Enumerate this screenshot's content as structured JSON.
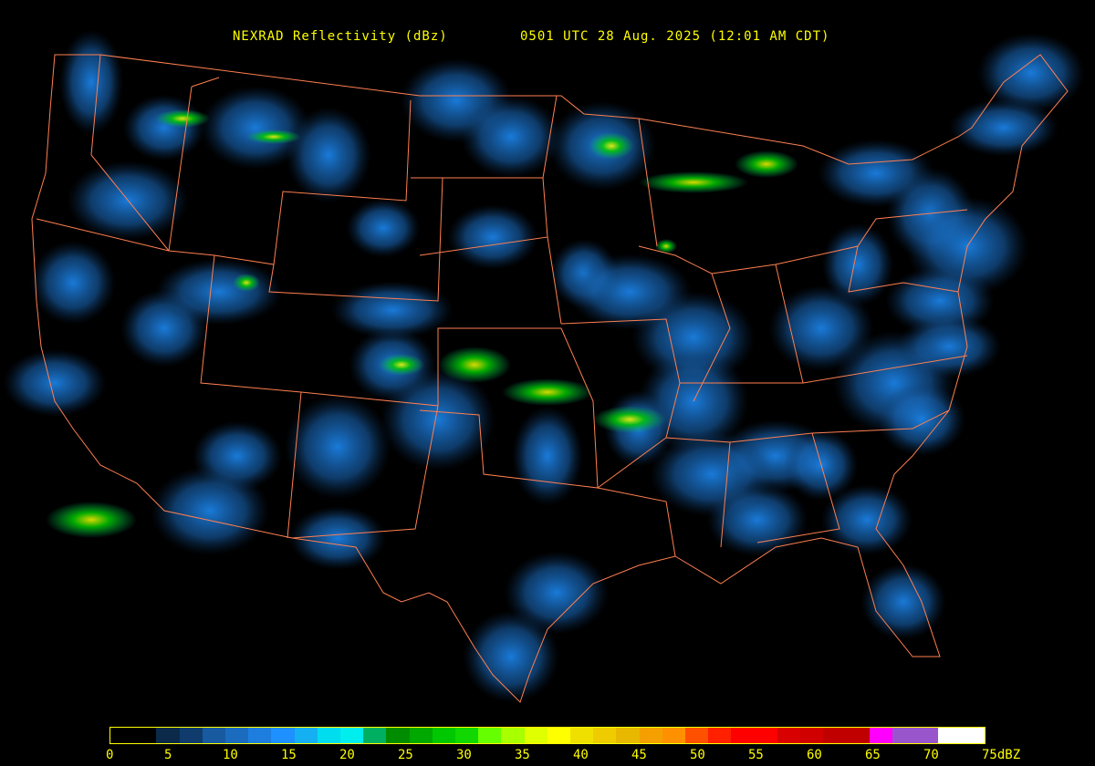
{
  "header": {
    "product": "NEXRAD Reflectivity (dBz)",
    "time": "0501 UTC 28 Aug. 2025 (12:01 AM CDT)"
  },
  "legend": {
    "ticks": [
      "0",
      "5",
      "10",
      "15",
      "20",
      "25",
      "30",
      "35",
      "40",
      "45",
      "50",
      "55",
      "60",
      "65",
      "70",
      "75dBZ"
    ],
    "colors": [
      "#000000",
      "#000000",
      "#0b2a4a",
      "#0f3c6c",
      "#175aa0",
      "#1b6cbf",
      "#1e7ee0",
      "#1e90ff",
      "#15b0f2",
      "#00ddee",
      "#00eeee",
      "#00b060",
      "#008c00",
      "#00a800",
      "#00c800",
      "#10d800",
      "#66ff00",
      "#a8ff00",
      "#e0ff00",
      "#ffff00",
      "#f0e000",
      "#eecc00",
      "#e8b800",
      "#f4a000",
      "#ff9000",
      "#ff5000",
      "#ff2000",
      "#ff0000",
      "#ff0000",
      "#d80000",
      "#d00000",
      "#c00000",
      "#c00000",
      "#ff00ff",
      "#9955cc",
      "#9955cc",
      "#ffffff",
      "#ffffff"
    ],
    "accent": "#ffff00"
  },
  "map": {
    "border_color": "#ff7f50",
    "echo_color_light": "#1e90ff",
    "echo_color_strong": "#00c800"
  }
}
